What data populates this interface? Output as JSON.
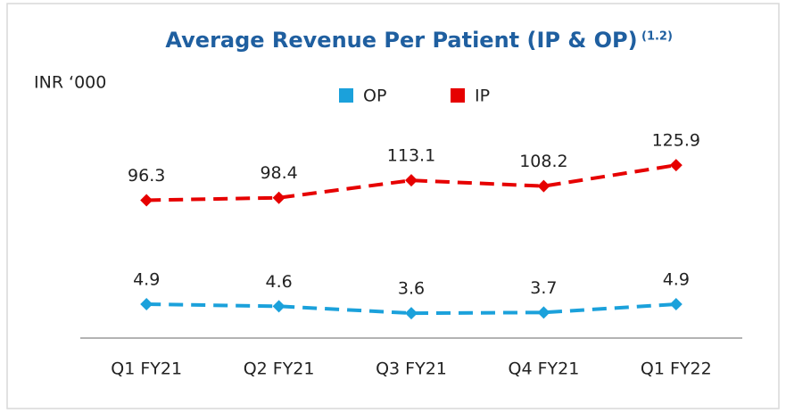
{
  "chart_data": {
    "type": "line",
    "title": "Average Revenue Per Patient (IP & OP)",
    "title_note": "(1.2)",
    "y_label": "INR ‘000",
    "categories": [
      "Q1 FY21",
      "Q2 FY21",
      "Q3 FY21",
      "Q4 FY21",
      "Q1 FY22"
    ],
    "series": [
      {
        "name": "OP",
        "color": "#1ba1db",
        "values": [
          4.9,
          4.6,
          3.6,
          3.7,
          4.9
        ],
        "axis": "y2"
      },
      {
        "name": "IP",
        "color": "#e60000",
        "values": [
          96.3,
          98.4,
          113.1,
          108.2,
          125.9
        ]
      }
    ],
    "ylim": [
      -20,
      190
    ],
    "y2lim": [
      0,
      36
    ],
    "legend": "top"
  }
}
